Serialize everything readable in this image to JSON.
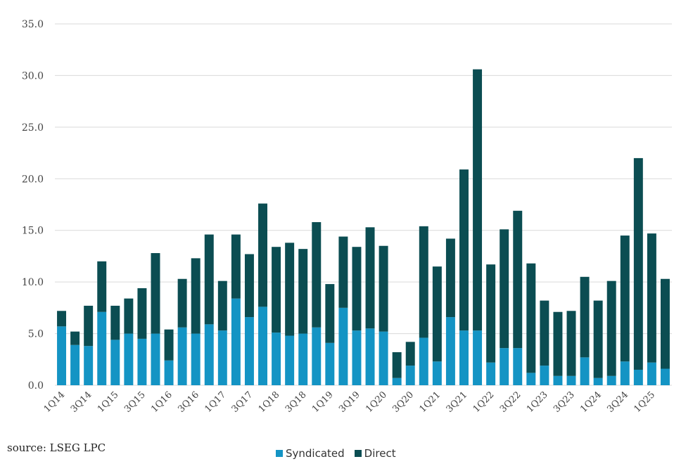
{
  "source_text": "source:  LSEG LPC",
  "chart_data": {
    "type": "bar",
    "stacked": true,
    "categories": [
      "1Q14",
      "2Q14",
      "3Q14",
      "4Q14",
      "1Q15",
      "2Q15",
      "3Q15",
      "4Q15",
      "1Q16",
      "2Q16",
      "3Q16",
      "4Q16",
      "1Q17",
      "2Q17",
      "3Q17",
      "4Q17",
      "1Q18",
      "2Q18",
      "3Q18",
      "4Q18",
      "1Q19",
      "2Q19",
      "3Q19",
      "4Q19",
      "1Q20",
      "2Q20",
      "3Q20",
      "4Q20",
      "1Q21",
      "2Q21",
      "3Q21",
      "4Q21",
      "1Q22",
      "2Q22",
      "3Q22",
      "4Q22",
      "1Q23",
      "2Q23",
      "3Q23",
      "4Q23",
      "1Q24",
      "2Q24",
      "3Q24",
      "4Q24",
      "1Q25",
      "2Q25"
    ],
    "x_tick_labels": [
      "1Q14",
      "3Q14",
      "1Q15",
      "3Q15",
      "1Q16",
      "3Q16",
      "1Q17",
      "3Q17",
      "1Q18",
      "3Q18",
      "1Q19",
      "3Q19",
      "1Q20",
      "3Q20",
      "1Q21",
      "3Q21",
      "1Q22",
      "3Q22",
      "1Q23",
      "3Q23",
      "1Q24",
      "3Q24",
      "1Q25"
    ],
    "series": [
      {
        "name": "Syndicated",
        "color": "#1494c4",
        "values": [
          5.7,
          3.9,
          3.8,
          7.1,
          4.4,
          5.0,
          4.5,
          5.0,
          2.4,
          5.6,
          5.0,
          5.9,
          5.3,
          8.4,
          6.6,
          7.6,
          5.1,
          4.8,
          5.0,
          5.6,
          4.1,
          7.5,
          5.3,
          5.5,
          5.2,
          0.7,
          1.9,
          4.6,
          2.3,
          6.6,
          5.3,
          5.3,
          2.2,
          3.6,
          3.6,
          1.2,
          1.9,
          0.9,
          0.9,
          2.7,
          0.7,
          0.9,
          2.3,
          1.5,
          2.2,
          1.6
        ]
      },
      {
        "name": "Direct",
        "color": "#0b4d52",
        "values": [
          1.5,
          1.3,
          3.9,
          4.9,
          3.3,
          3.4,
          4.9,
          7.8,
          3.0,
          4.7,
          7.3,
          8.7,
          4.8,
          6.2,
          6.1,
          10.0,
          8.3,
          9.0,
          8.2,
          10.2,
          5.7,
          6.9,
          8.1,
          9.8,
          8.3,
          2.5,
          2.3,
          10.8,
          9.2,
          7.6,
          15.6,
          25.3,
          9.5,
          11.5,
          13.3,
          10.6,
          6.3,
          6.2,
          6.3,
          7.8,
          7.5,
          9.2,
          12.2,
          20.5,
          12.5,
          8.7
        ]
      }
    ],
    "y_ticks": [
      "0.0",
      "5.0",
      "10.0",
      "15.0",
      "20.0",
      "25.0",
      "30.0",
      "35.0"
    ],
    "ylim": [
      0,
      35
    ],
    "grid": true,
    "legend_position": "bottom"
  }
}
